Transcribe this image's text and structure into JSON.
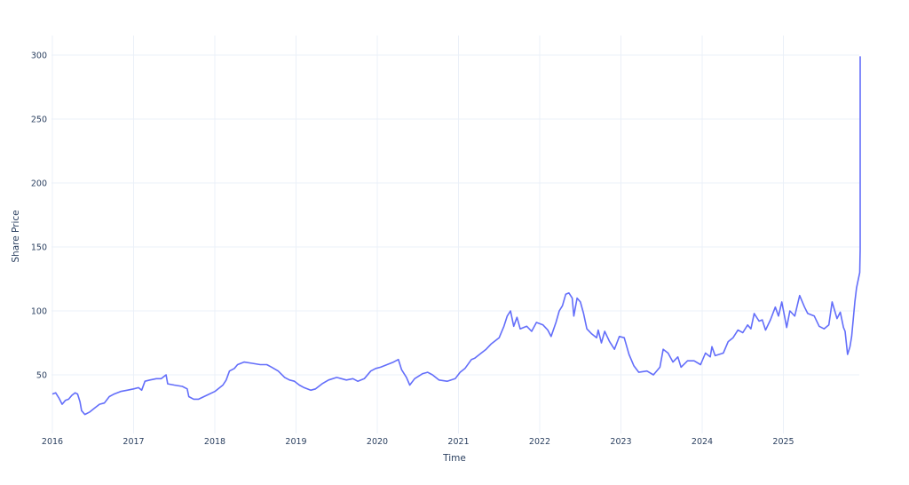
{
  "chart_data": {
    "type": "line",
    "title": "",
    "xlabel": "Time",
    "ylabel": "Share Price",
    "ylim": [
      0,
      315
    ],
    "xlim": [
      2015.99,
      2025.95
    ],
    "yticks": [
      50,
      100,
      150,
      200,
      250,
      300
    ],
    "xticks": [
      "2016",
      "2017",
      "2018",
      "2019",
      "2020",
      "2021",
      "2022",
      "2023",
      "2024",
      "2025"
    ],
    "grid": true,
    "legend": "none",
    "line_color": "#636efa",
    "series": [
      {
        "name": "Share Price",
        "points": [
          [
            2016.0,
            35
          ],
          [
            2016.04,
            36
          ],
          [
            2016.08,
            32
          ],
          [
            2016.12,
            27
          ],
          [
            2016.16,
            30
          ],
          [
            2016.2,
            31
          ],
          [
            2016.24,
            34
          ],
          [
            2016.28,
            36
          ],
          [
            2016.31,
            35
          ],
          [
            2016.34,
            29
          ],
          [
            2016.36,
            22
          ],
          [
            2016.4,
            19
          ],
          [
            2016.46,
            21
          ],
          [
            2016.52,
            24
          ],
          [
            2016.58,
            27
          ],
          [
            2016.64,
            28
          ],
          [
            2016.7,
            33
          ],
          [
            2016.76,
            35
          ],
          [
            2016.84,
            37
          ],
          [
            2016.92,
            38
          ],
          [
            2017.0,
            39
          ],
          [
            2017.06,
            40
          ],
          [
            2017.1,
            38
          ],
          [
            2017.14,
            45
          ],
          [
            2017.2,
            46
          ],
          [
            2017.28,
            47
          ],
          [
            2017.34,
            47
          ],
          [
            2017.4,
            50
          ],
          [
            2017.42,
            43
          ],
          [
            2017.5,
            42
          ],
          [
            2017.6,
            41
          ],
          [
            2017.66,
            39
          ],
          [
            2017.68,
            33
          ],
          [
            2017.74,
            31
          ],
          [
            2017.8,
            31
          ],
          [
            2017.9,
            34
          ],
          [
            2018.0,
            37
          ],
          [
            2018.06,
            40
          ],
          [
            2018.1,
            42
          ],
          [
            2018.14,
            46
          ],
          [
            2018.18,
            53
          ],
          [
            2018.24,
            55
          ],
          [
            2018.28,
            58
          ],
          [
            2018.36,
            60
          ],
          [
            2018.46,
            59
          ],
          [
            2018.56,
            58
          ],
          [
            2018.64,
            58
          ],
          [
            2018.7,
            56
          ],
          [
            2018.78,
            53
          ],
          [
            2018.86,
            48
          ],
          [
            2018.92,
            46
          ],
          [
            2018.98,
            45
          ],
          [
            2019.04,
            42
          ],
          [
            2019.1,
            40
          ],
          [
            2019.18,
            38
          ],
          [
            2019.24,
            39
          ],
          [
            2019.32,
            43
          ],
          [
            2019.4,
            46
          ],
          [
            2019.5,
            48
          ],
          [
            2019.56,
            47
          ],
          [
            2019.62,
            46
          ],
          [
            2019.7,
            47
          ],
          [
            2019.76,
            45
          ],
          [
            2019.84,
            47
          ],
          [
            2019.92,
            53
          ],
          [
            2019.98,
            55
          ],
          [
            2020.04,
            56
          ],
          [
            2020.12,
            58
          ],
          [
            2020.2,
            60
          ],
          [
            2020.26,
            62
          ],
          [
            2020.3,
            54
          ],
          [
            2020.36,
            48
          ],
          [
            2020.4,
            42
          ],
          [
            2020.46,
            47
          ],
          [
            2020.56,
            51
          ],
          [
            2020.62,
            52
          ],
          [
            2020.68,
            50
          ],
          [
            2020.76,
            46
          ],
          [
            2020.86,
            45
          ],
          [
            2020.96,
            47
          ],
          [
            2021.02,
            52
          ],
          [
            2021.08,
            55
          ],
          [
            2021.16,
            62
          ],
          [
            2021.2,
            63
          ],
          [
            2021.28,
            67
          ],
          [
            2021.34,
            70
          ],
          [
            2021.4,
            74
          ],
          [
            2021.5,
            79
          ],
          [
            2021.56,
            88
          ],
          [
            2021.6,
            96
          ],
          [
            2021.64,
            100
          ],
          [
            2021.68,
            88
          ],
          [
            2021.72,
            95
          ],
          [
            2021.76,
            86
          ],
          [
            2021.84,
            88
          ],
          [
            2021.9,
            84
          ],
          [
            2021.96,
            91
          ],
          [
            2022.04,
            89
          ],
          [
            2022.1,
            85
          ],
          [
            2022.14,
            80
          ],
          [
            2022.2,
            91
          ],
          [
            2022.24,
            100
          ],
          [
            2022.28,
            104
          ],
          [
            2022.32,
            113
          ],
          [
            2022.36,
            114
          ],
          [
            2022.4,
            110
          ],
          [
            2022.42,
            96
          ],
          [
            2022.46,
            110
          ],
          [
            2022.5,
            107
          ],
          [
            2022.54,
            98
          ],
          [
            2022.58,
            86
          ],
          [
            2022.64,
            82
          ],
          [
            2022.7,
            79
          ],
          [
            2022.72,
            85
          ],
          [
            2022.76,
            75
          ],
          [
            2022.8,
            84
          ],
          [
            2022.86,
            76
          ],
          [
            2022.92,
            70
          ],
          [
            2022.98,
            80
          ],
          [
            2023.04,
            79
          ],
          [
            2023.1,
            66
          ],
          [
            2023.16,
            57
          ],
          [
            2023.22,
            52
          ],
          [
            2023.32,
            53
          ],
          [
            2023.4,
            50
          ],
          [
            2023.48,
            56
          ],
          [
            2023.52,
            70
          ],
          [
            2023.58,
            67
          ],
          [
            2023.64,
            60
          ],
          [
            2023.7,
            64
          ],
          [
            2023.74,
            56
          ],
          [
            2023.82,
            61
          ],
          [
            2023.9,
            61
          ],
          [
            2023.98,
            58
          ],
          [
            2024.04,
            67
          ],
          [
            2024.1,
            64
          ],
          [
            2024.12,
            72
          ],
          [
            2024.16,
            65
          ],
          [
            2024.26,
            67
          ],
          [
            2024.32,
            76
          ],
          [
            2024.38,
            79
          ],
          [
            2024.44,
            85
          ],
          [
            2024.5,
            83
          ],
          [
            2024.56,
            89
          ],
          [
            2024.6,
            86
          ],
          [
            2024.64,
            98
          ],
          [
            2024.7,
            92
          ],
          [
            2024.74,
            93
          ],
          [
            2024.78,
            85
          ],
          [
            2024.84,
            93
          ],
          [
            2024.9,
            103
          ],
          [
            2024.94,
            96
          ],
          [
            2024.98,
            107
          ],
          [
            2025.04,
            87
          ],
          [
            2025.08,
            100
          ],
          [
            2025.14,
            96
          ],
          [
            2025.2,
            112
          ],
          [
            2025.26,
            103
          ],
          [
            2025.3,
            98
          ],
          [
            2025.38,
            96
          ],
          [
            2025.44,
            88
          ],
          [
            2025.5,
            86
          ],
          [
            2025.56,
            89
          ],
          [
            2025.6,
            107
          ],
          [
            2025.66,
            94
          ],
          [
            2025.7,
            99
          ],
          [
            2025.74,
            87
          ],
          [
            2025.76,
            84
          ],
          [
            2025.79,
            66
          ],
          [
            2025.82,
            72
          ],
          [
            2025.84,
            80
          ],
          [
            2025.88,
            107
          ],
          [
            2025.9,
            118
          ],
          [
            2025.94,
            130
          ],
          [
            2025.98,
            148
          ],
          [
            2026.02,
            150
          ],
          [
            2026.06,
            156
          ],
          [
            2026.1,
            172
          ],
          [
            2026.13,
            200
          ],
          [
            2026.16,
            230
          ],
          [
            2026.18,
            255
          ],
          [
            2026.19,
            220
          ],
          [
            2026.21,
            213
          ],
          [
            2026.22,
            240
          ],
          [
            2026.24,
            262
          ],
          [
            2026.25,
            294
          ],
          [
            2026.26,
            270
          ],
          [
            2026.28,
            237
          ],
          [
            2026.3,
            268
          ],
          [
            2026.31,
            258
          ],
          [
            2026.33,
            285
          ],
          [
            2026.35,
            299
          ]
        ]
      }
    ]
  }
}
